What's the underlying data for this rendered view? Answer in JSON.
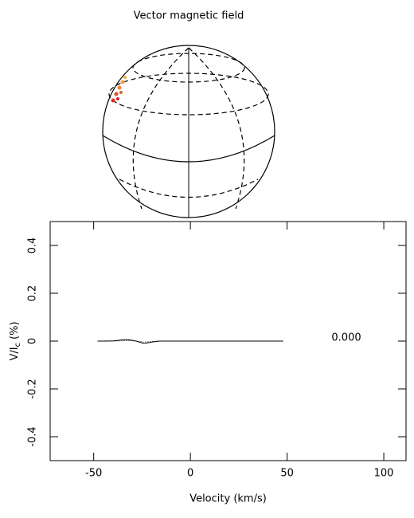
{
  "chart_data": [
    {
      "type": "sphere",
      "title": "Vector magnetic field"
    },
    {
      "type": "line",
      "xlabel": "Velocity (km/s)",
      "ylabel": {
        "main": "V/I",
        "subscript": "c",
        "unit": "(%)"
      },
      "annotation": "0.000",
      "xlim": [
        -72.5,
        111.5
      ],
      "ylim": [
        -0.5,
        0.5
      ],
      "xticks": [
        -50,
        0,
        50,
        100
      ],
      "yticks": [
        -0.4,
        -0.2,
        0,
        0.2,
        0.4
      ],
      "x": [
        -48,
        -44,
        -40,
        -36,
        -32,
        -28,
        -24,
        -20,
        -16,
        -12,
        -8,
        -4,
        0,
        4,
        8,
        12,
        16,
        20,
        24,
        28,
        32,
        36,
        40,
        44,
        48
      ],
      "series": [
        {
          "color": "#000000",
          "style": "solid",
          "values": [
            0,
            0,
            0.001,
            0.004,
            0.006,
            0,
            -0.01,
            -0.004,
            0,
            0,
            0,
            0,
            0,
            0,
            0,
            0,
            0,
            0,
            0,
            0,
            0,
            0,
            0,
            0,
            0
          ]
        },
        {
          "color": "#000000",
          "style": "dotted",
          "values": [
            0,
            0,
            0,
            0.001,
            0.002,
            0,
            -0.004,
            -0.002,
            0,
            0,
            0,
            0,
            0,
            0,
            0,
            0,
            0,
            0,
            0,
            0,
            0,
            0,
            0,
            0,
            0
          ]
        }
      ]
    }
  ]
}
